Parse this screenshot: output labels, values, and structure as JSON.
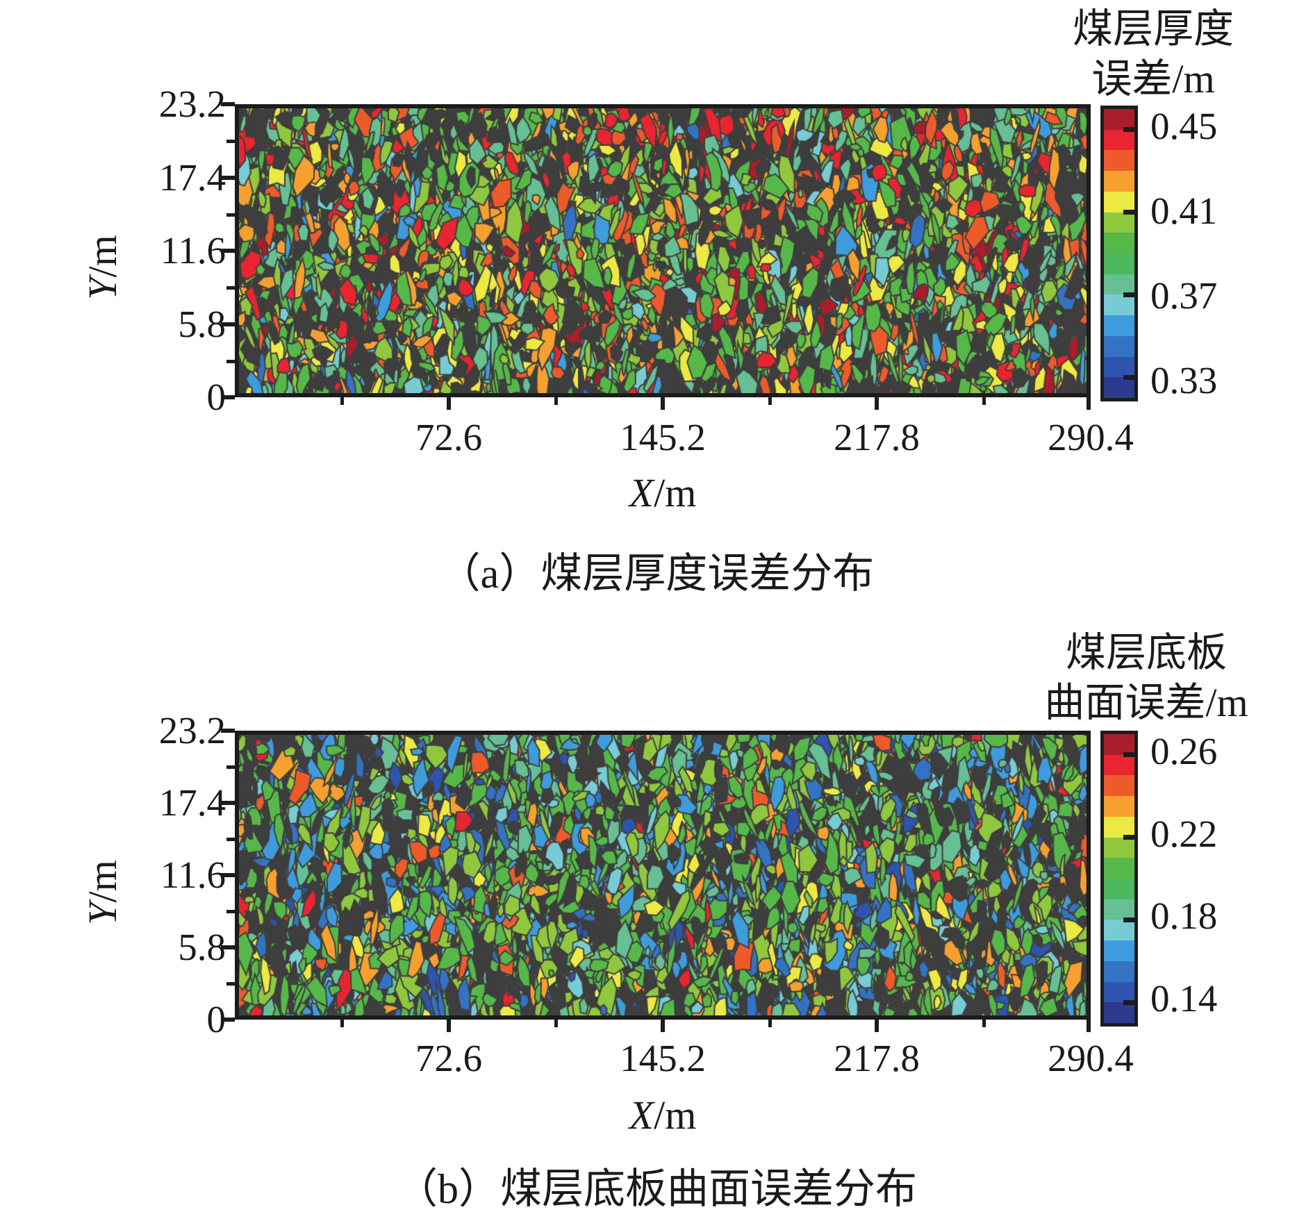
{
  "panels": [
    {
      "id": "a",
      "colorbar_title_lines": [
        "煤层厚度",
        "误差/m"
      ],
      "y_ticks": [
        "23.2",
        "17.4",
        "11.6",
        "5.8",
        "0"
      ],
      "x_ticks": [
        "72.6",
        "145.2",
        "217.8",
        "290.4"
      ],
      "colorbar_ticks": [
        "0.45",
        "0.41",
        "0.37",
        "0.33"
      ],
      "x_label": {
        "var": "X",
        "unit": "/m"
      },
      "y_label": {
        "var": "Y",
        "unit": "/m"
      },
      "caption": "（a）煤层厚度误差分布"
    },
    {
      "id": "b",
      "colorbar_title_lines": [
        "煤层底板",
        "曲面误差/m"
      ],
      "y_ticks": [
        "23.2",
        "17.4",
        "11.6",
        "5.8",
        "0"
      ],
      "x_ticks": [
        "72.6",
        "145.2",
        "217.8",
        "290.4"
      ],
      "colorbar_ticks": [
        "0.26",
        "0.22",
        "0.18",
        "0.14"
      ],
      "x_label": {
        "var": "X",
        "unit": "/m"
      },
      "y_label": {
        "var": "Y",
        "unit": "/m"
      },
      "caption": "（b）煤层底板曲面误差分布"
    }
  ],
  "chart_data": [
    {
      "type": "heatmap",
      "title": "煤层厚度误差分布",
      "xlabel": "X/m",
      "ylabel": "Y/m",
      "x_range": [
        0,
        290.4
      ],
      "y_range": [
        0,
        23.2
      ],
      "x_tick_values": [
        72.6,
        145.2,
        217.8,
        290.4
      ],
      "y_tick_values": [
        0,
        5.8,
        11.6,
        17.4,
        23.2
      ],
      "grid": false,
      "legend_position": "right-colorbar",
      "colorbar": {
        "label": "煤层厚度误差/m",
        "value_range": [
          0.32,
          0.46
        ],
        "tick_values": [
          0.45,
          0.41,
          0.37,
          0.33
        ],
        "band_step": 0.01,
        "band_colors_top_to_bottom": [
          "#a91e2c",
          "#e82530",
          "#ee5b2a",
          "#f6a02f",
          "#ede943",
          "#8fc83f",
          "#56b848",
          "#4cb85c",
          "#66c094",
          "#77ccd4",
          "#3f9cdc",
          "#3473c3",
          "#2e55ae",
          "#2c3b8f"
        ]
      },
      "description": "Dense speckled contour field of coal-seam thickness error on dark background; mostly mid-range greens (≈0.38–0.41 m) with many high-error orange/red hotspots (≈0.43–0.46 m) and sparse blue low-error patches (≈0.33–0.36 m).",
      "texture": {
        "seed": 20471,
        "background": "#3e3e3e",
        "density": 150,
        "palette": [
          {
            "color": "#56b848",
            "w": 0.19
          },
          {
            "color": "#8fc83f",
            "w": 0.12
          },
          {
            "color": "#66c094",
            "w": 0.1
          },
          {
            "color": "#ede943",
            "w": 0.06
          },
          {
            "color": "#f6a02f",
            "w": 0.08
          },
          {
            "color": "#ee5b2a",
            "w": 0.07
          },
          {
            "color": "#e82530",
            "w": 0.07
          },
          {
            "color": "#a91e2c",
            "w": 0.02
          },
          {
            "color": "#77ccd4",
            "w": 0.03
          },
          {
            "color": "#3f9cdc",
            "w": 0.025
          },
          {
            "color": "#3473c3",
            "w": 0.015
          },
          {
            "color": "#3e3e3e",
            "w": 0.22
          }
        ]
      }
    },
    {
      "type": "heatmap",
      "title": "煤层底板曲面误差分布",
      "xlabel": "X/m",
      "ylabel": "Y/m",
      "x_range": [
        0,
        290.4
      ],
      "y_range": [
        0,
        23.2
      ],
      "x_tick_values": [
        72.6,
        145.2,
        217.8,
        290.4
      ],
      "y_tick_values": [
        0,
        5.8,
        11.6,
        17.4,
        23.2
      ],
      "grid": false,
      "legend_position": "right-colorbar",
      "colorbar": {
        "label": "煤层底板曲面误差/m",
        "value_range": [
          0.13,
          0.27
        ],
        "tick_values": [
          0.26,
          0.22,
          0.18,
          0.14
        ],
        "band_step": 0.01,
        "band_colors_top_to_bottom": [
          "#a91e2c",
          "#e82530",
          "#ee5b2a",
          "#f6a02f",
          "#ede943",
          "#8fc83f",
          "#56b848",
          "#4cb85c",
          "#66c094",
          "#77ccd4",
          "#3f9cdc",
          "#3473c3",
          "#2e55ae",
          "#2c3b8f"
        ]
      },
      "description": "Dense speckled contour field of coal-floor surface error on dark background; dominated by greens (≈0.19–0.22 m) with frequent blue low-error patches (≈0.14–0.17 m) and scattered orange/red high-error spots (≈0.24–0.27 m).",
      "texture": {
        "seed": 90137,
        "background": "#3e3e3e",
        "density": 150,
        "palette": [
          {
            "color": "#56b848",
            "w": 0.21
          },
          {
            "color": "#8fc83f",
            "w": 0.13
          },
          {
            "color": "#66c094",
            "w": 0.1
          },
          {
            "color": "#ede943",
            "w": 0.035
          },
          {
            "color": "#f6a02f",
            "w": 0.05
          },
          {
            "color": "#ee5b2a",
            "w": 0.03
          },
          {
            "color": "#e82530",
            "w": 0.015
          },
          {
            "color": "#77ccd4",
            "w": 0.05
          },
          {
            "color": "#3f9cdc",
            "w": 0.08
          },
          {
            "color": "#3473c3",
            "w": 0.05
          },
          {
            "color": "#2e55ae",
            "w": 0.02
          },
          {
            "color": "#3e3e3e",
            "w": 0.22
          }
        ]
      }
    }
  ]
}
